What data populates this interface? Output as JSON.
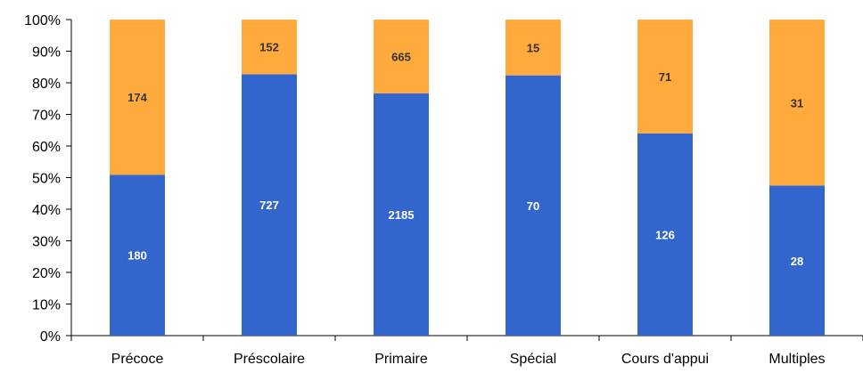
{
  "chart_data": {
    "type": "bar",
    "stacked": true,
    "normalized": true,
    "categories": [
      "Précoce",
      "Préscolaire",
      "Primaire",
      "Spécial",
      "Cours d'appui",
      "Multiples"
    ],
    "series": [
      {
        "values": [
          180,
          727,
          2185,
          70,
          126,
          28
        ],
        "color": "#3366cc",
        "label_color": "#ffffff"
      },
      {
        "values": [
          174,
          152,
          665,
          15,
          71,
          31
        ],
        "color": "#ffaa3c",
        "label_color": "#333333"
      }
    ],
    "y_ticks": [
      "0%",
      "10%",
      "20%",
      "30%",
      "40%",
      "50%",
      "60%",
      "70%",
      "80%",
      "90%",
      "100%"
    ],
    "ylim": [
      0,
      100
    ],
    "grid": false,
    "legend": "none"
  }
}
